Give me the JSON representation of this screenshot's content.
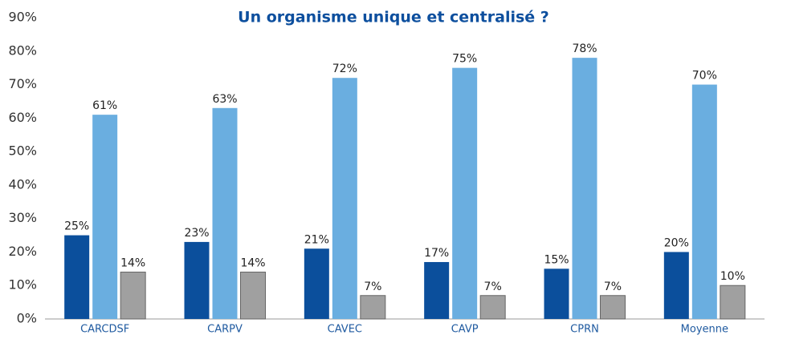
{
  "chart_data": {
    "type": "bar",
    "title": "Un organisme unique et centralisé ?",
    "categories": [
      "CARCDSF",
      "CARPV",
      "CAVEC",
      "CAVP",
      "CPRN",
      "Moyenne"
    ],
    "series": [
      {
        "color": "#0b4f9c",
        "values": [
          25,
          23,
          21,
          17,
          15,
          20
        ],
        "value_labels": [
          "25%",
          "23%",
          "21%",
          "17%",
          "15%",
          "20%"
        ]
      },
      {
        "color": "#6aaee0",
        "values": [
          61,
          63,
          72,
          75,
          78,
          70
        ],
        "value_labels": [
          "61%",
          "63%",
          "72%",
          "75%",
          "78%",
          "70%"
        ]
      },
      {
        "color": "#a0a0a0",
        "values": [
          14,
          14,
          7,
          7,
          7,
          10
        ],
        "value_labels": [
          "14%",
          "14%",
          "7%",
          "7%",
          "7%",
          "10%"
        ]
      }
    ],
    "ylim": [
      0,
      90
    ],
    "yticks": [
      {
        "value": 0,
        "label": "0%"
      },
      {
        "value": 10,
        "label": "10%"
      },
      {
        "value": 20,
        "label": "20%"
      },
      {
        "value": 30,
        "label": "30%"
      },
      {
        "value": 40,
        "label": "40%"
      },
      {
        "value": 50,
        "label": "50%"
      },
      {
        "value": 60,
        "label": "60%"
      },
      {
        "value": 70,
        "label": "70%"
      },
      {
        "value": 80,
        "label": "80%"
      },
      {
        "value": 90,
        "label": "90%"
      }
    ],
    "grid": false
  }
}
